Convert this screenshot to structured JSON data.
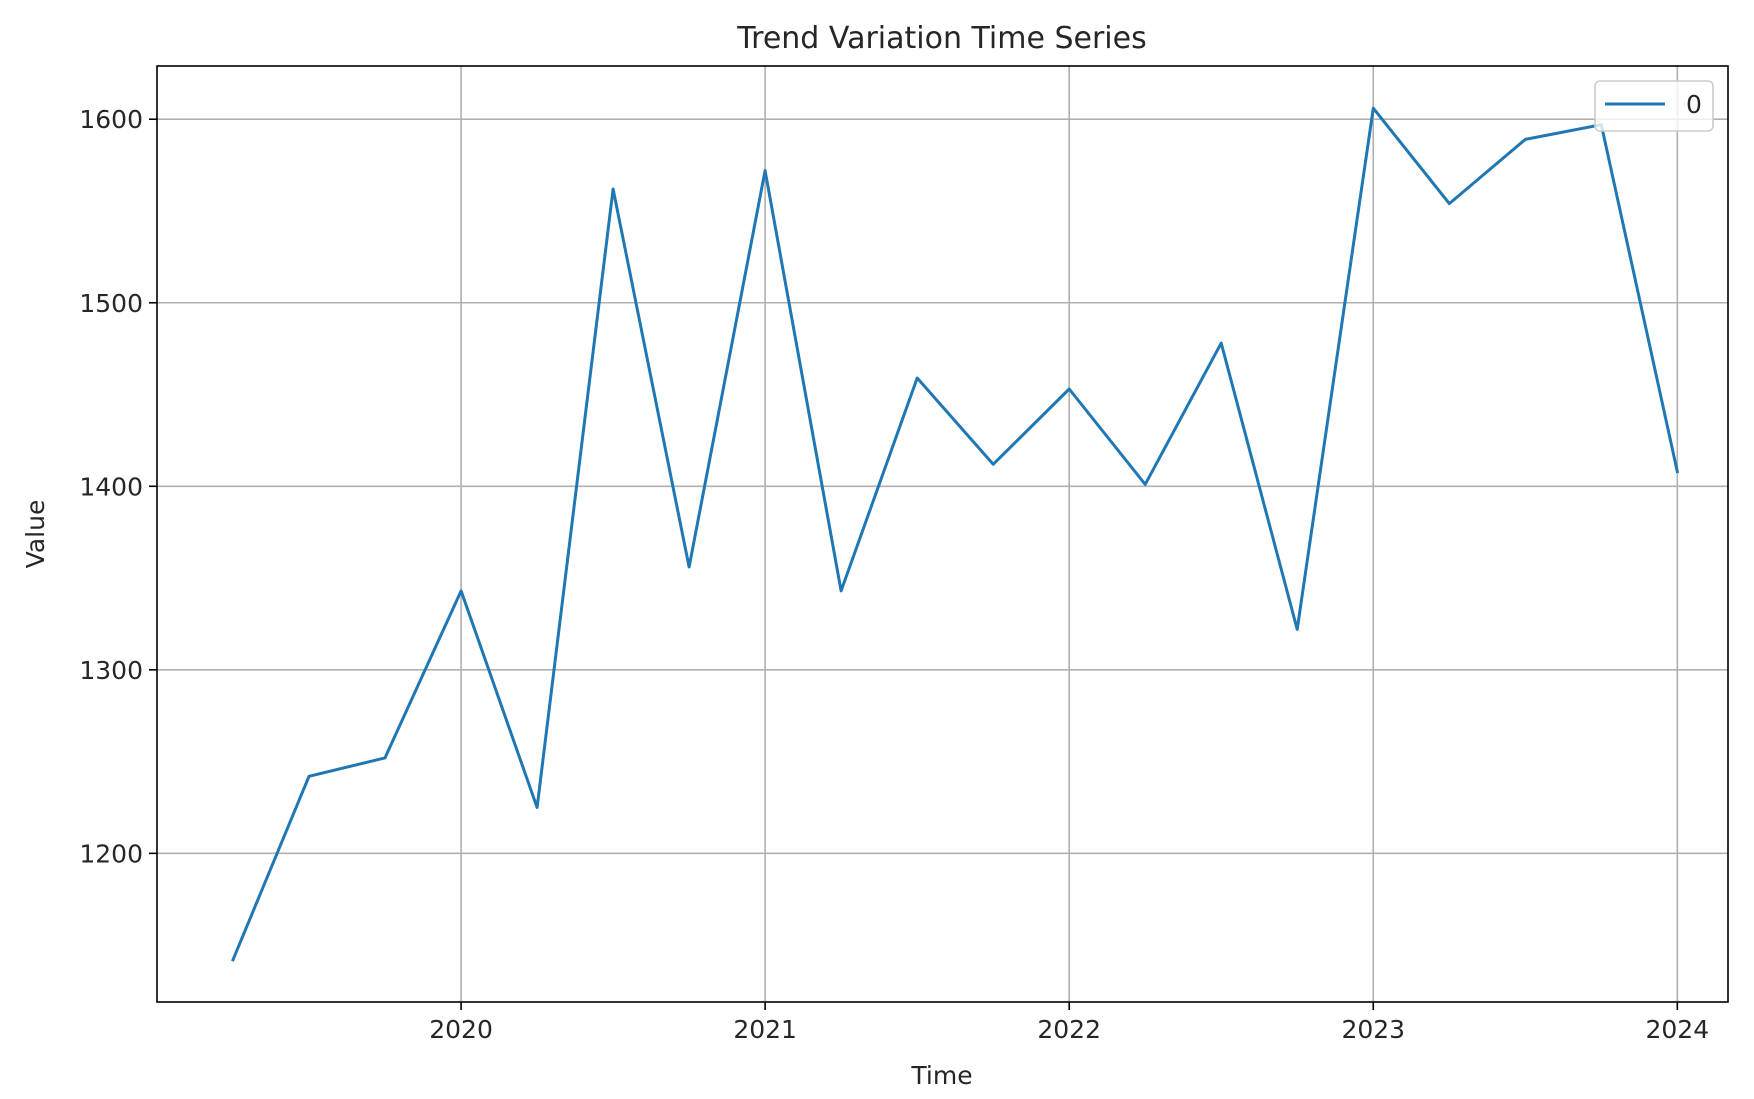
{
  "chart_data": {
    "type": "line",
    "title": "Trend Variation Time Series",
    "xlabel": "Time",
    "ylabel": "Value",
    "x": [
      "2019-04",
      "2019-07",
      "2019-10",
      "2020-01",
      "2020-04",
      "2020-07",
      "2020-10",
      "2021-01",
      "2021-04",
      "2021-07",
      "2021-10",
      "2022-01",
      "2022-04",
      "2022-07",
      "2022-10",
      "2023-01",
      "2023-04",
      "2023-07",
      "2023-10",
      "2024-01"
    ],
    "series": [
      {
        "name": "0",
        "color": "#1f77b4",
        "values": [
          1142,
          1242,
          1252,
          1343,
          1225,
          1562,
          1356,
          1572,
          1343,
          1459,
          1412,
          1453,
          1401,
          1478,
          1322,
          1606,
          1554,
          1589,
          1597,
          1408
        ]
      }
    ],
    "xticks": [
      {
        "label": "2020",
        "date": "2020-01"
      },
      {
        "label": "2021",
        "date": "2021-01"
      },
      {
        "label": "2022",
        "date": "2022-01"
      },
      {
        "label": "2023",
        "date": "2023-01"
      },
      {
        "label": "2024",
        "date": "2024-01"
      }
    ],
    "yticks": [
      1200,
      1300,
      1400,
      1500,
      1600
    ],
    "ylim": [
      1119,
      1629
    ],
    "xlim": [
      "2019-01",
      "2024-03"
    ],
    "grid": true,
    "legend_position": "top-right"
  }
}
